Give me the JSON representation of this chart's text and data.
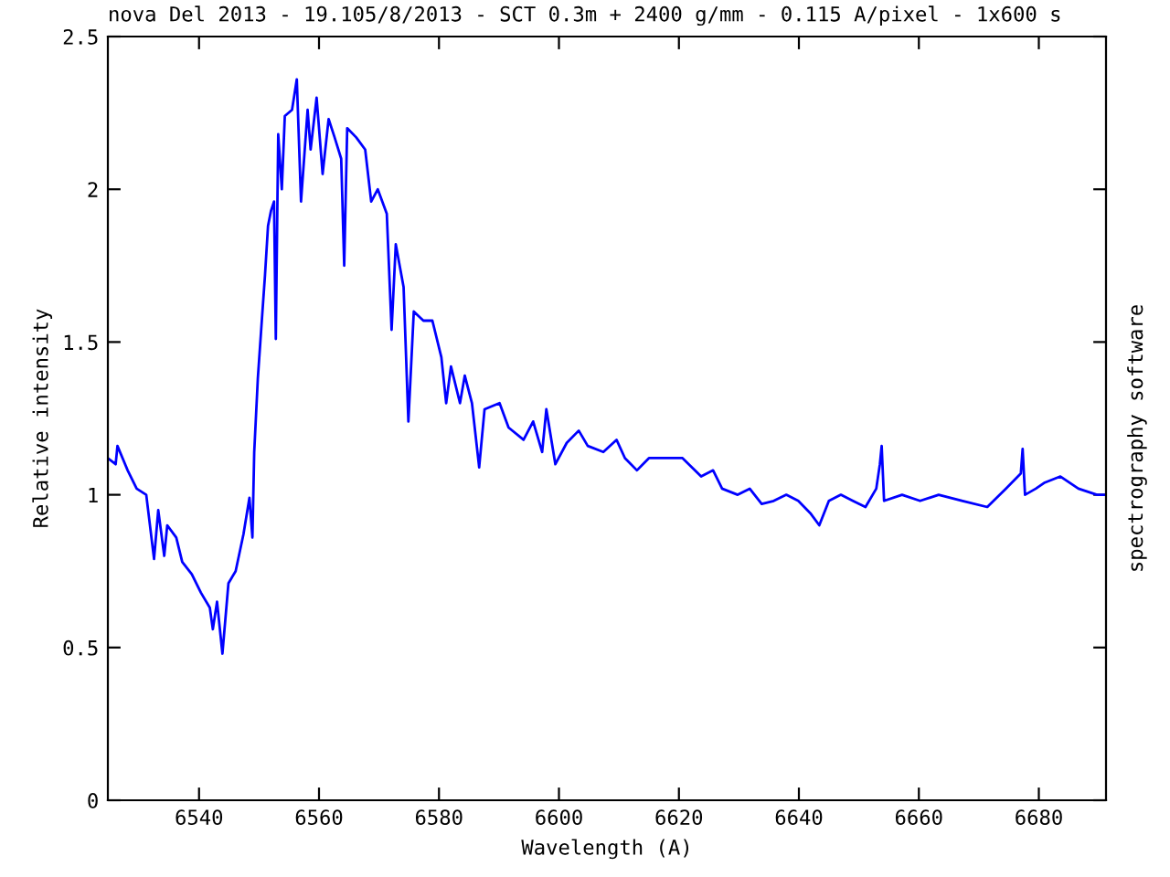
{
  "chart_data": {
    "type": "line",
    "title": "nova Del 2013 - 19.105/8/2013 - SCT 0.3m + 2400 g/mm - 0.115 A/pixel - 1x600 s",
    "xlabel": "Wavelength (A)",
    "ylabel": "Relative intensity",
    "annotations": [
      "spectrography software"
    ],
    "xlim": [
      6524.8,
      6691.2
    ],
    "ylim": [
      0,
      2.5
    ],
    "xticks": [
      6540,
      6560,
      6580,
      6600,
      6620,
      6640,
      6660,
      6680
    ],
    "yticks": [
      0,
      0.5,
      1,
      1.5,
      2,
      2.5
    ],
    "grid": false,
    "legend": false,
    "marker": "none",
    "line_style": "solid",
    "series": [
      {
        "color": "#0000ff",
        "x": [
          6524.8,
          6526.1,
          6526.4,
          6528.1,
          6529.6,
          6531.2,
          6532.5,
          6533.2,
          6534.2,
          6534.7,
          6536.2,
          6537.2,
          6538.8,
          6540.3,
          6541.8,
          6542.3,
          6543.0,
          6543.9,
          6544.9,
          6546.1,
          6547.4,
          6548.4,
          6548.9,
          6549.2,
          6549.8,
          6550.5,
          6551.0,
          6551.5,
          6552.0,
          6552.5,
          6552.8,
          6553.2,
          6553.8,
          6554.3,
          6555.5,
          6556.3,
          6557.0,
          6558.1,
          6558.6,
          6559.6,
          6560.6,
          6561.6,
          6562.6,
          6563.7,
          6564.2,
          6564.7,
          6566.2,
          6567.7,
          6568.7,
          6569.8,
          6571.3,
          6572.1,
          6572.8,
          6574.1,
          6574.9,
          6575.8,
          6577.4,
          6578.9,
          6580.4,
          6581.2,
          6582.0,
          6583.5,
          6584.3,
          6585.5,
          6586.7,
          6587.6,
          6590.1,
          6591.6,
          6594.1,
          6595.7,
          6597.2,
          6597.9,
          6599.4,
          6601.3,
          6603.3,
          6604.8,
          6607.4,
          6609.6,
          6611.0,
          6613.0,
          6615.0,
          6618.5,
          6620.6,
          6623.7,
          6625.7,
          6627.2,
          6629.8,
          6631.8,
          6633.8,
          6635.8,
          6637.9,
          6639.9,
          6641.9,
          6643.4,
          6645.0,
          6647.0,
          6649.0,
          6651.1,
          6652.9,
          6653.5,
          6653.8,
          6654.2,
          6657.2,
          6660.2,
          6663.3,
          6667.3,
          6671.4,
          6674.5,
          6677.0,
          6677.3,
          6677.7,
          6679.5,
          6681.0,
          6683.6,
          6686.6,
          6689.7,
          6691.2
        ],
        "values": [
          1.12,
          1.1,
          1.16,
          1.08,
          1.02,
          1.0,
          0.79,
          0.95,
          0.8,
          0.9,
          0.86,
          0.78,
          0.74,
          0.68,
          0.63,
          0.56,
          0.65,
          0.48,
          0.71,
          0.75,
          0.87,
          0.99,
          0.86,
          1.14,
          1.38,
          1.58,
          1.72,
          1.88,
          1.93,
          1.96,
          1.51,
          2.18,
          2.0,
          2.24,
          2.26,
          2.36,
          1.96,
          2.26,
          2.13,
          2.3,
          2.05,
          2.23,
          2.17,
          2.1,
          1.75,
          2.2,
          2.17,
          2.13,
          1.96,
          2.0,
          1.92,
          1.54,
          1.82,
          1.68,
          1.24,
          1.6,
          1.57,
          1.57,
          1.45,
          1.3,
          1.42,
          1.3,
          1.39,
          1.3,
          1.09,
          1.28,
          1.3,
          1.22,
          1.18,
          1.24,
          1.14,
          1.28,
          1.1,
          1.17,
          1.21,
          1.16,
          1.14,
          1.18,
          1.12,
          1.08,
          1.12,
          1.12,
          1.12,
          1.06,
          1.08,
          1.02,
          1.0,
          1.02,
          0.97,
          0.98,
          1.0,
          0.98,
          0.94,
          0.9,
          0.98,
          1.0,
          0.98,
          0.96,
          1.02,
          1.1,
          1.16,
          0.98,
          1.0,
          0.98,
          1.0,
          0.98,
          0.96,
          1.02,
          1.07,
          1.15,
          1.0,
          1.02,
          1.04,
          1.06,
          1.02,
          1.0,
          1.0
        ]
      }
    ]
  }
}
